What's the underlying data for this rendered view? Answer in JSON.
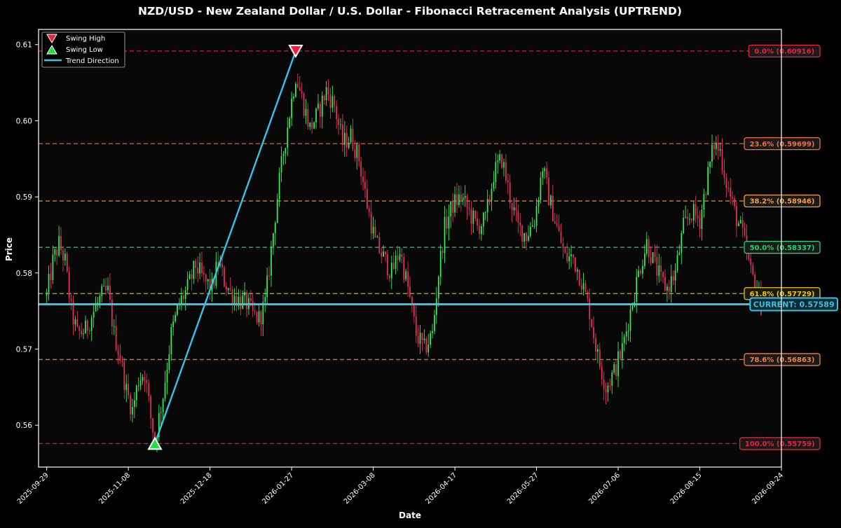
{
  "chart_data": {
    "type": "candlestick",
    "title": "NZD/USD - New Zealand Dollar / U.S. Dollar - Fibonacci Retracement Analysis (UPTREND)",
    "xlabel": "Date",
    "ylabel": "Price",
    "ylim": [
      0.5545,
      0.612
    ],
    "y_ticks": [
      0.56,
      0.57,
      0.58,
      0.59,
      0.6,
      0.61
    ],
    "y_tick_labels": [
      "0.56",
      "0.57",
      "0.58",
      "0.59",
      "0.60",
      "0.61"
    ],
    "xlim": [
      "2025-09-25",
      "2026-09-24"
    ],
    "x_ticks": [
      "2025-09-29",
      "2025-11-08",
      "2025-12-18",
      "2026-01-27",
      "2026-03-08",
      "2026-04-17",
      "2026-05-27",
      "2026-07-06",
      "2026-08-15",
      "2026-09-24"
    ],
    "legend": {
      "position": "top-left",
      "entries": [
        {
          "label": "Swing High",
          "marker": "down-triangle",
          "color": "#e8223f"
        },
        {
          "label": "Swing Low",
          "marker": "up-triangle",
          "color": "#22dd44"
        },
        {
          "label": "Trend Direction",
          "marker": "line",
          "color": "#33c4e6"
        }
      ]
    },
    "colors": {
      "background": "#080808",
      "bull_candle": "#33ee55",
      "bear_candle": "#e8305a",
      "trend": "#33c4e6",
      "current": "#33c4e6"
    },
    "swing_high": {
      "date": "2026-01-29",
      "price": 0.60916
    },
    "swing_low": {
      "date": "2025-11-21",
      "price": 0.55759
    },
    "fib_levels": [
      {
        "label": "0.0% (0.60916)",
        "price": 0.60916,
        "color": "#e8223f"
      },
      {
        "label": "23.6% (0.59699)",
        "price": 0.59699,
        "color": "#ef6f4a"
      },
      {
        "label": "38.2% (0.58946)",
        "price": 0.58946,
        "color": "#f2a045"
      },
      {
        "label": "50.0% (0.58337)",
        "price": 0.58337,
        "color": "#2ecc71"
      },
      {
        "label": "61.8% (0.57729)",
        "price": 0.57729,
        "color": "#f1c40f"
      },
      {
        "label": "78.6% (0.56863)",
        "price": 0.56863,
        "color": "#ef7f4a"
      },
      {
        "label": "100.0% (0.55759)",
        "price": 0.55759,
        "color": "#e8223f"
      }
    ],
    "current": {
      "label": "CURRENT: 0.57589",
      "price": 0.57589
    },
    "price_path": [
      [
        "2025-09-29",
        0.577
      ],
      [
        "2025-10-02",
        0.5815
      ],
      [
        "2025-10-05",
        0.5838
      ],
      [
        "2025-10-08",
        0.5815
      ],
      [
        "2025-10-11",
        0.575
      ],
      [
        "2025-10-14",
        0.572
      ],
      [
        "2025-10-18",
        0.5725
      ],
      [
        "2025-10-22",
        0.575
      ],
      [
        "2025-10-26",
        0.577
      ],
      [
        "2025-10-29",
        0.5775
      ],
      [
        "2025-11-01",
        0.572
      ],
      [
        "2025-11-04",
        0.569
      ],
      [
        "2025-11-07",
        0.5645
      ],
      [
        "2025-11-10",
        0.562
      ],
      [
        "2025-11-13",
        0.566
      ],
      [
        "2025-11-16",
        0.567
      ],
      [
        "2025-11-19",
        0.561
      ],
      [
        "2025-11-21",
        0.558
      ],
      [
        "2025-11-25",
        0.564
      ],
      [
        "2025-11-29",
        0.572
      ],
      [
        "2025-12-03",
        0.576
      ],
      [
        "2025-12-07",
        0.578
      ],
      [
        "2025-12-11",
        0.581
      ],
      [
        "2025-12-15",
        0.579
      ],
      [
        "2025-12-19",
        0.578
      ],
      [
        "2025-12-22",
        0.5815
      ],
      [
        "2025-12-25",
        0.579
      ],
      [
        "2025-12-28",
        0.5775
      ],
      [
        "2026-01-01",
        0.5765
      ],
      [
        "2026-01-05",
        0.576
      ],
      [
        "2026-01-08",
        0.5745
      ],
      [
        "2026-01-11",
        0.574
      ],
      [
        "2026-01-14",
        0.576
      ],
      [
        "2026-01-17",
        0.583
      ],
      [
        "2026-01-20",
        0.59
      ],
      [
        "2026-01-23",
        0.596
      ],
      [
        "2026-01-26",
        0.601
      ],
      [
        "2026-01-29",
        0.606
      ],
      [
        "2026-02-02",
        0.602
      ],
      [
        "2026-02-05",
        0.599
      ],
      [
        "2026-02-09",
        0.601
      ],
      [
        "2026-02-13",
        0.604
      ],
      [
        "2026-02-17",
        0.602
      ],
      [
        "2026-02-21",
        0.597
      ],
      [
        "2026-02-25",
        0.598
      ],
      [
        "2026-03-01",
        0.595
      ],
      [
        "2026-03-05",
        0.589
      ],
      [
        "2026-03-09",
        0.584
      ],
      [
        "2026-03-13",
        0.582
      ],
      [
        "2026-03-17",
        0.58
      ],
      [
        "2026-03-21",
        0.583
      ],
      [
        "2026-03-25",
        0.578
      ],
      [
        "2026-03-29",
        0.572
      ],
      [
        "2026-04-02",
        0.57
      ],
      [
        "2026-04-06",
        0.572
      ],
      [
        "2026-04-09",
        0.58
      ],
      [
        "2026-04-12",
        0.586
      ],
      [
        "2026-04-16",
        0.589
      ],
      [
        "2026-04-20",
        0.59
      ],
      [
        "2026-04-24",
        0.588
      ],
      [
        "2026-04-28",
        0.586
      ],
      [
        "2026-05-02",
        0.587
      ],
      [
        "2026-05-06",
        0.593
      ],
      [
        "2026-05-10",
        0.595
      ],
      [
        "2026-05-14",
        0.59
      ],
      [
        "2026-05-18",
        0.586
      ],
      [
        "2026-05-22",
        0.585
      ],
      [
        "2026-05-26",
        0.587
      ],
      [
        "2026-05-30",
        0.594
      ],
      [
        "2026-06-02",
        0.59
      ],
      [
        "2026-06-06",
        0.586
      ],
      [
        "2026-06-10",
        0.582
      ],
      [
        "2026-06-14",
        0.582
      ],
      [
        "2026-06-18",
        0.579
      ],
      [
        "2026-06-22",
        0.575
      ],
      [
        "2026-06-26",
        0.569
      ],
      [
        "2026-06-30",
        0.565
      ],
      [
        "2026-07-04",
        0.567
      ],
      [
        "2026-07-08",
        0.57
      ],
      [
        "2026-07-12",
        0.575
      ],
      [
        "2026-07-16",
        0.58
      ],
      [
        "2026-07-20",
        0.584
      ],
      [
        "2026-07-24",
        0.581
      ],
      [
        "2026-07-27",
        0.579
      ],
      [
        "2026-07-30",
        0.578
      ],
      [
        "2026-08-03",
        0.58
      ],
      [
        "2026-08-07",
        0.586
      ],
      [
        "2026-08-11",
        0.588
      ],
      [
        "2026-08-15",
        0.587
      ],
      [
        "2026-08-19",
        0.593
      ],
      [
        "2026-08-22",
        0.597
      ],
      [
        "2026-08-25",
        0.596
      ],
      [
        "2026-08-28",
        0.592
      ],
      [
        "2026-09-01",
        0.588
      ],
      [
        "2026-09-05",
        0.585
      ],
      [
        "2026-09-09",
        0.58
      ],
      [
        "2026-09-12",
        0.578
      ],
      [
        "2026-09-14",
        0.5759
      ]
    ]
  }
}
